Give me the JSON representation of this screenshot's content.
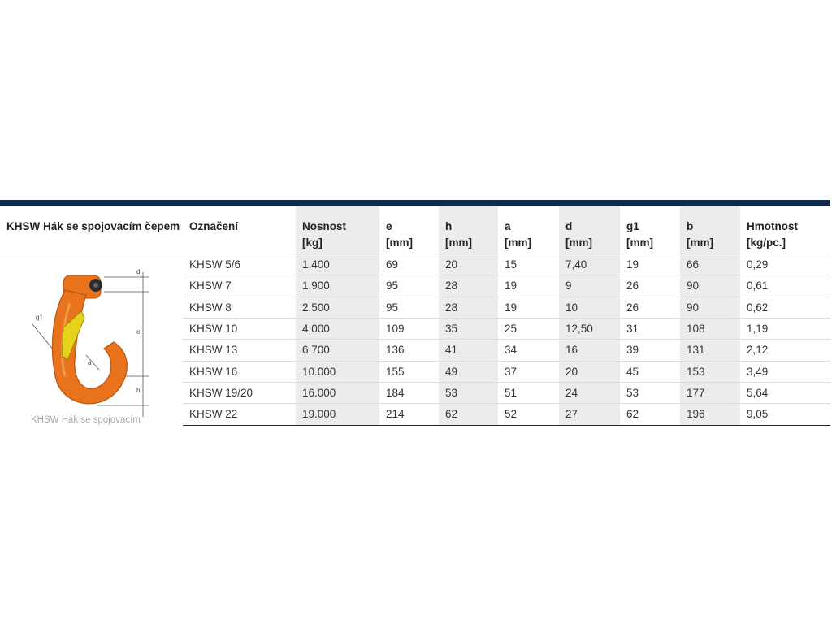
{
  "table": {
    "title": "KHSW Hák se spojovacím čepem",
    "headers": [
      {
        "label": "Označení",
        "unit": ""
      },
      {
        "label": "Nosnost",
        "unit": "[kg]"
      },
      {
        "label": "e",
        "unit": "[mm]"
      },
      {
        "label": "h",
        "unit": "[mm]"
      },
      {
        "label": "a",
        "unit": "[mm]"
      },
      {
        "label": "d",
        "unit": "[mm]"
      },
      {
        "label": "g1",
        "unit": "[mm]"
      },
      {
        "label": "b",
        "unit": "[mm]"
      },
      {
        "label": "Hmotnost",
        "unit": "[kg/pc.]"
      }
    ],
    "rows": [
      [
        "KHSW 5/6",
        "1.400",
        "69",
        "20",
        "15",
        "7,40",
        "19",
        "66",
        "0,29"
      ],
      [
        "KHSW 7",
        "1.900",
        "95",
        "28",
        "19",
        "9",
        "26",
        "90",
        "0,61"
      ],
      [
        "KHSW 8",
        "2.500",
        "95",
        "28",
        "19",
        "10",
        "26",
        "90",
        "0,62"
      ],
      [
        "KHSW 10",
        "4.000",
        "109",
        "35",
        "25",
        "12,50",
        "31",
        "108",
        "1,19"
      ],
      [
        "KHSW 13",
        "6.700",
        "136",
        "41",
        "34",
        "16",
        "39",
        "131",
        "2,12"
      ],
      [
        "KHSW 16",
        "10.000",
        "155",
        "49",
        "37",
        "20",
        "45",
        "153",
        "3,49"
      ],
      [
        "KHSW 19/20",
        "16.000",
        "184",
        "53",
        "51",
        "24",
        "53",
        "177",
        "5,64"
      ],
      [
        "KHSW 22",
        "19.000",
        "214",
        "62",
        "52",
        "27",
        "62",
        "196",
        "9,05"
      ]
    ]
  },
  "image": {
    "caption": "KHSW Hák se spojovacím",
    "dimension_labels": [
      "d",
      "e",
      "h",
      "g1",
      "a"
    ],
    "colors": {
      "hook": "#e8731c",
      "hook_dark": "#b85410",
      "latch": "#e6d21a",
      "header_bar": "#0f2a4e"
    }
  }
}
